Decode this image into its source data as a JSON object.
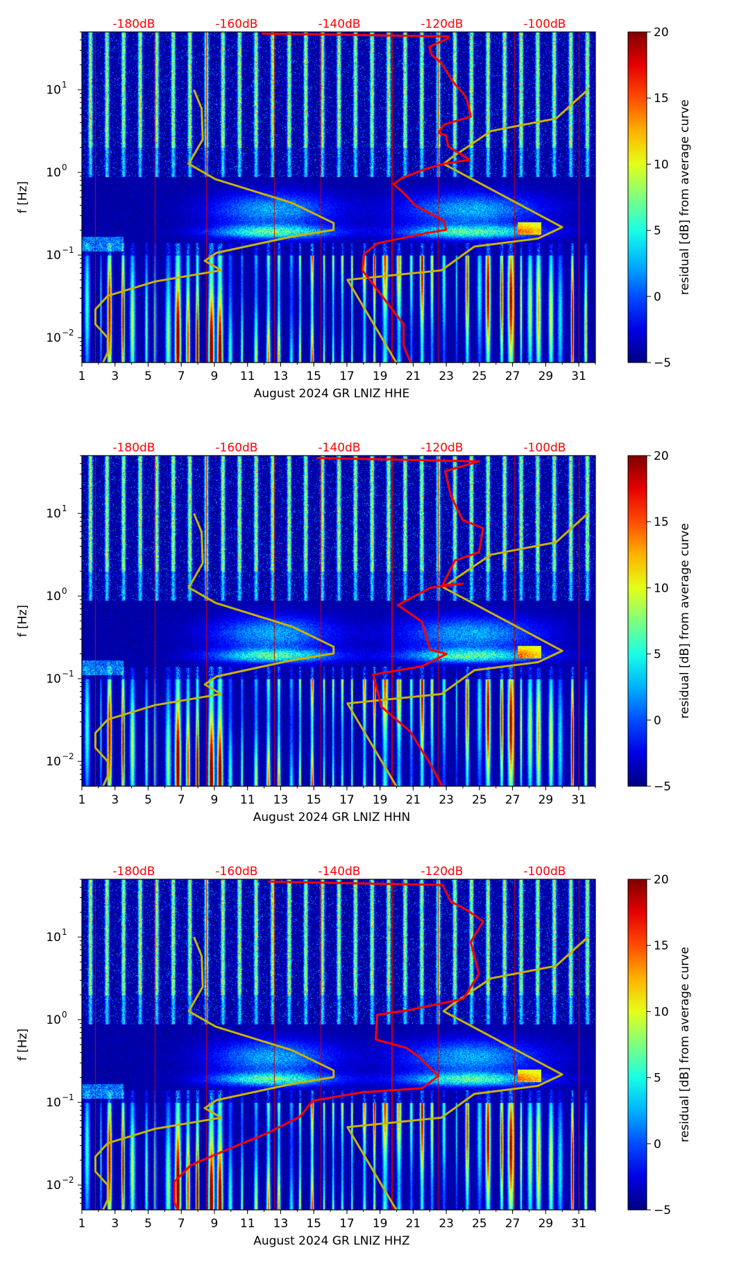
{
  "chart_data": [
    {
      "type": "heatmap",
      "title": "",
      "xlabel": "August 2024 GR LNIZ  HHE",
      "ylabel": "f [Hz]",
      "colorbar_label": "residual [dB] from average curve",
      "psd_curve": {
        "color": "#ff0000",
        "db": [
          -155.1,
          -118.8,
          -118.8,
          -122.5,
          -122.0,
          -120.2,
          -117.9,
          -115.6,
          -115.1,
          -114.4,
          -119.7,
          -120.6,
          -119.2,
          -118.8,
          -114.6,
          -119.7,
          -123.4,
          -128.0,
          -129.4,
          -127.1,
          -125.2,
          -119.7,
          -119.2,
          -122.5,
          -132.6,
          -135.2,
          -135.5,
          -133.5,
          -130.7,
          -127.5,
          -127.5,
          -126.1
        ],
        "log10_freq": [
          1.68,
          1.645,
          1.62,
          1.52,
          1.42,
          1.33,
          1.1,
          0.935,
          0.87,
          0.674,
          0.576,
          0.478,
          0.445,
          0.315,
          0.152,
          0.103,
          0.038,
          -0.076,
          -0.141,
          -0.272,
          -0.402,
          -0.581,
          -0.695,
          -0.728,
          -0.858,
          -0.989,
          -1.185,
          -1.348,
          -1.576,
          -1.837,
          -2.097,
          -2.3
        ]
      }
    },
    {
      "type": "heatmap",
      "title": "",
      "xlabel": "August 2024 GR LNIZ  HHN",
      "ylabel": "f [Hz]",
      "colorbar_label": "residual [dB] from average curve",
      "psd_curve": {
        "color": "#ff0000",
        "db": [
          -144.4,
          -112.8,
          -119.4,
          -118.3,
          -116.0,
          -112.0,
          -112.8,
          -117.5,
          -119.9,
          -116.0,
          -122.3,
          -128.6,
          -123.9,
          -122.3,
          -119.1,
          -123.9,
          -133.4,
          -131.8,
          -126.2,
          -122.3,
          -119.9
        ],
        "log10_freq": [
          1.67,
          1.63,
          1.51,
          1.22,
          0.92,
          0.82,
          0.53,
          0.43,
          0.13,
          0.15,
          0.1,
          -0.11,
          -0.31,
          -0.65,
          -0.7,
          -0.85,
          -0.95,
          -1.34,
          -1.64,
          -2.03,
          -2.31
        ]
      }
    },
    {
      "type": "heatmap",
      "title": "",
      "xlabel": "August 2024 GR LNIZ  HHZ",
      "ylabel": "f [Hz]",
      "colorbar_label": "residual [dB] from average curve",
      "psd_curve": {
        "color": "#ff0000",
        "db": [
          -153.9,
          -119.9,
          -118.3,
          -115.2,
          -112.0,
          -114.4,
          -112.8,
          -115.9,
          -119.9,
          -123.9,
          -127.0,
          -132.6,
          -132.9,
          -127.0,
          -124.7,
          -120.7,
          -123.9,
          -135.7,
          -145.2,
          -147.6,
          -153.9,
          -161.8,
          -168.9,
          -172.1,
          -172.1,
          -171.3
        ],
        "log10_freq": [
          1.67,
          1.63,
          1.43,
          1.33,
          1.19,
          0.94,
          0.55,
          0.25,
          0.2,
          0.15,
          0.11,
          0.06,
          -0.24,
          -0.34,
          -0.44,
          -0.68,
          -0.83,
          -0.88,
          -0.98,
          -1.17,
          -1.37,
          -1.57,
          -1.76,
          -1.96,
          -2.21,
          -2.32
        ]
      }
    }
  ],
  "shared": {
    "xlim_day": [
      1,
      32
    ],
    "ylim_hz": [
      0.005,
      50
    ],
    "colorbar_range": [
      -5,
      20
    ],
    "colormap": "jet",
    "xticks": [
      "1",
      "3",
      "5",
      "7",
      "9",
      "11",
      "13",
      "15",
      "17",
      "19",
      "21",
      "23",
      "25",
      "27",
      "29",
      "31"
    ],
    "yticks": [
      {
        "base": "10",
        "exp": "1",
        "value": 10
      },
      {
        "base": "10",
        "exp": "0",
        "value": 1
      },
      {
        "base": "10",
        "exp": "−1",
        "value": 0.1
      },
      {
        "base": "10",
        "exp": "−2",
        "value": 0.01
      }
    ],
    "top_db_ticks": [
      {
        "label": "-180dB",
        "value": -180
      },
      {
        "label": "-160dB",
        "value": -160
      },
      {
        "label": "-140dB",
        "value": -140
      },
      {
        "label": "-120dB",
        "value": -120
      },
      {
        "label": "-100dB",
        "value": -100
      }
    ],
    "colorbar_ticks": [
      {
        "label": "20",
        "value": 20
      },
      {
        "label": "15",
        "value": 15
      },
      {
        "label": "10",
        "value": 10
      },
      {
        "label": "5",
        "value": 5
      },
      {
        "label": "0",
        "value": 0
      },
      {
        "label": "−5",
        "value": -5
      }
    ],
    "noise_model_color": "#c8b400",
    "nlnm": {
      "db": [
        -168.3,
        -166.8,
        -166.6,
        -169.3,
        -164.1,
        -149.2,
        -141.1,
        -141.1,
        -149.2,
        -163.9,
        -166.2,
        -163.0,
        -175.9,
        -185.1,
        -187.5,
        -187.5,
        -185.1,
        -185.1,
        -186.0
      ],
      "log10_freq": [
        1.0,
        0.77,
        0.397,
        0.103,
        -0.083,
        -0.37,
        -0.614,
        -0.695,
        -0.777,
        -0.973,
        -1.07,
        -1.185,
        -1.32,
        -1.494,
        -1.657,
        -1.837,
        -2.0,
        -2.18,
        -2.3
      ]
    },
    "nhnm": {
      "db": [
        -91.6,
        -97.8,
        -110.5,
        -118.0,
        -119.7,
        -96.6,
        -101.3,
        -113.7,
        -120.1,
        -138.4,
        -128.9
      ],
      "log10_freq": [
        1.0,
        0.651,
        0.5,
        0.185,
        0.103,
        -0.663,
        -0.8,
        -0.898,
        -1.185,
        -1.3,
        -2.3
      ]
    }
  }
}
